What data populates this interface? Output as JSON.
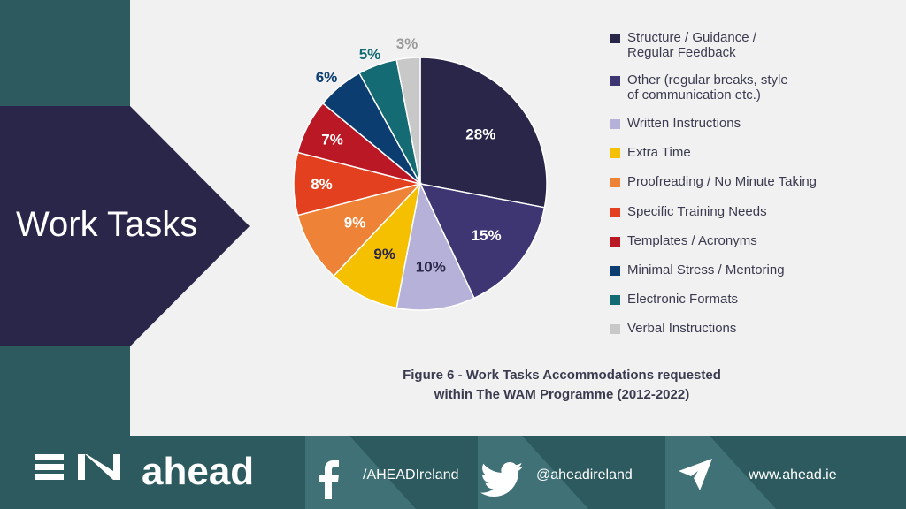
{
  "slide_title": "Work Tasks",
  "caption": {
    "line1": "Figure 6 - Work Tasks Accommodations requested",
    "line2": "within The WAM Programme (2012-2022)"
  },
  "chart_data": {
    "type": "pie",
    "title": "Figure 6 - Work Tasks Accommodations requested within The WAM Programme (2012-2022)",
    "categories": [
      "Structure / Guidance / Regular Feedback",
      "Other (regular breaks, style of communication etc.)",
      "Written Instructions",
      "Extra Time",
      "Proofreading / No Minute Taking",
      "Specific Training Needs",
      "Templates / Acronyms",
      "Minimal Stress / Mentoring",
      "Electronic Formats",
      "Verbal Instructions"
    ],
    "values": [
      28,
      15,
      10,
      9,
      9,
      8,
      7,
      6,
      5,
      3
    ],
    "data_labels": [
      "28%",
      "15%",
      "10%",
      "9%",
      "9%",
      "8%",
      "7%",
      "6%",
      "5%",
      "3%"
    ],
    "colors": [
      "#2a2649",
      "#3e3573",
      "#b6b1d8",
      "#f5c000",
      "#ee8236",
      "#e2401f",
      "#bb1826",
      "#0c3d70",
      "#146b74",
      "#c8c8c8"
    ],
    "label_colors": [
      "#ffffff",
      "#ffffff",
      "#2a2649",
      "#2a2649",
      "#ffffff",
      "#ffffff",
      "#ffffff",
      "#0c3d70",
      "#146b74",
      "#9a9a9a"
    ],
    "legend": {
      "lines": [
        [
          "Structure / Guidance /",
          "Regular Feedback"
        ],
        [
          "Other (regular breaks, style",
          "of communication etc.)"
        ],
        [
          "Written Instructions"
        ],
        [
          "Extra Time"
        ],
        [
          "Proofreading / No Minute Taking"
        ],
        [
          "Specific Training Needs"
        ],
        [
          "Templates / Acronyms"
        ],
        [
          "Minimal Stress / Mentoring"
        ],
        [
          "Electronic Formats"
        ],
        [
          "Verbal Instructions"
        ]
      ],
      "placement": "right"
    }
  },
  "footer": {
    "brand": "ahead",
    "facebook": "/AHEADIreland",
    "twitter": "@aheadireland",
    "website": "www.ahead.ie",
    "icons": [
      "ahead-logo-icon",
      "facebook-icon",
      "twitter-icon",
      "paper-plane-icon"
    ]
  },
  "colors": {
    "teal_bg": "#2d5a5e",
    "navy_title": "#2a2649",
    "content_bg": "#f1f1f1",
    "text_dark": "#3b3b4f"
  }
}
